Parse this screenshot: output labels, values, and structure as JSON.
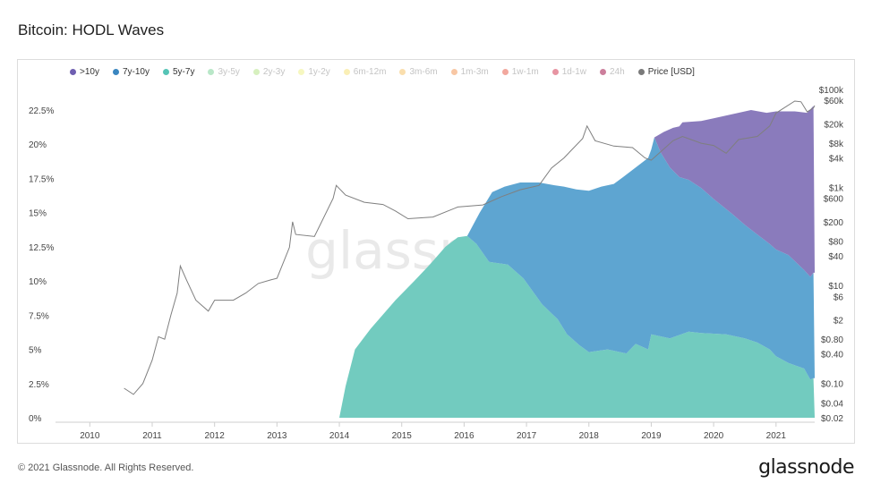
{
  "title": "Bitcoin: HODL Waves",
  "footer": "© 2021 Glassnode. All Rights Reserved.",
  "logo": "glassnode",
  "watermark": "glassnode",
  "legend": [
    {
      "label": ">10y",
      "color": "#6f5fb1",
      "active": true
    },
    {
      "label": "7y-10y",
      "color": "#3a86c0",
      "active": true
    },
    {
      "label": "5y-7y",
      "color": "#56c4b6",
      "active": true
    },
    {
      "label": "3y-5y",
      "color": "#7fd39a",
      "active": false
    },
    {
      "label": "2y-3y",
      "color": "#b7e48a",
      "active": false
    },
    {
      "label": "1y-2y",
      "color": "#eef08c",
      "active": false
    },
    {
      "label": "6m-12m",
      "color": "#f5e27a",
      "active": false
    },
    {
      "label": "3m-6m",
      "color": "#f6c36a",
      "active": false
    },
    {
      "label": "1m-3m",
      "color": "#f3995a",
      "active": false
    },
    {
      "label": "1w-1m",
      "color": "#e8604f",
      "active": false
    },
    {
      "label": "1d-1w",
      "color": "#d33d55",
      "active": false
    },
    {
      "label": "24h",
      "color": "#a3154a",
      "active": false
    },
    {
      "label": "Price [USD]",
      "color": "#7a7a7a",
      "active": true
    }
  ],
  "chart_data": {
    "type": "area",
    "x_ticks": [
      "2010",
      "2011",
      "2012",
      "2013",
      "2014",
      "2015",
      "2016",
      "2017",
      "2018",
      "2019",
      "2020",
      "2021"
    ],
    "y_ticks": [
      "0%",
      "2.5%",
      "5%",
      "7.5%",
      "10%",
      "12.5%",
      "15%",
      "17.5%",
      "20%",
      "22.5%"
    ],
    "y_right_ticks": [
      "$0.02",
      "$0.04",
      "$0.10",
      "$0.40",
      "$0.80",
      "$2",
      "$6",
      "$10",
      "$40",
      "$80",
      "$200",
      "$600",
      "$1k",
      "$4k",
      "$8k",
      "$20k",
      "$60k",
      "$100k"
    ],
    "ylim": [
      0,
      22.5
    ],
    "series": [
      {
        "name": "5y-7y",
        "color": "#72cbbf",
        "points": [
          [
            2014.0,
            0
          ],
          [
            2014.1,
            2.3
          ],
          [
            2014.25,
            5
          ],
          [
            2014.5,
            6.5
          ],
          [
            2014.9,
            8.6
          ],
          [
            2015.2,
            10
          ],
          [
            2015.45,
            11.2
          ],
          [
            2015.7,
            12.5
          ],
          [
            2015.9,
            13.2
          ],
          [
            2016.05,
            13.3
          ],
          [
            2016.2,
            12.7
          ],
          [
            2016.4,
            11.4
          ],
          [
            2016.7,
            11.2
          ],
          [
            2016.95,
            10.2
          ],
          [
            2017.25,
            8.3
          ],
          [
            2017.5,
            7.2
          ],
          [
            2017.65,
            6.1
          ],
          [
            2017.85,
            5.3
          ],
          [
            2018.0,
            4.8
          ],
          [
            2018.3,
            5.0
          ],
          [
            2018.6,
            4.7
          ],
          [
            2018.75,
            5.4
          ],
          [
            2018.95,
            5.0
          ],
          [
            2019.0,
            6.1
          ],
          [
            2019.3,
            5.8
          ],
          [
            2019.6,
            6.3
          ],
          [
            2019.8,
            6.2
          ],
          [
            2020.2,
            6.1
          ],
          [
            2020.5,
            5.8
          ],
          [
            2020.7,
            5.5
          ],
          [
            2020.9,
            5.0
          ],
          [
            2021.0,
            4.5
          ],
          [
            2021.2,
            4.0
          ],
          [
            2021.45,
            3.6
          ],
          [
            2021.55,
            2.8
          ],
          [
            2021.6,
            2.9
          ],
          [
            2021.62,
            0
          ]
        ]
      },
      {
        "name": "7y-10y",
        "color": "#5ea5d1",
        "points": [
          [
            2016.0,
            13.3
          ],
          [
            2016.05,
            13.3
          ],
          [
            2016.25,
            15.0
          ],
          [
            2016.45,
            16.5
          ],
          [
            2016.65,
            16.9
          ],
          [
            2016.9,
            17.2
          ],
          [
            2017.2,
            17.2
          ],
          [
            2017.45,
            17.0
          ],
          [
            2017.6,
            16.9
          ],
          [
            2017.8,
            16.7
          ],
          [
            2018.0,
            16.6
          ],
          [
            2018.2,
            16.9
          ],
          [
            2018.4,
            17.1
          ],
          [
            2018.55,
            17.6
          ],
          [
            2018.75,
            18.3
          ],
          [
            2018.95,
            19.0
          ],
          [
            2019.0,
            19.6
          ],
          [
            2019.05,
            20.5
          ],
          [
            2019.15,
            19.4
          ],
          [
            2019.3,
            18.3
          ],
          [
            2019.45,
            17.6
          ],
          [
            2019.6,
            17.4
          ],
          [
            2019.8,
            16.8
          ],
          [
            2020.0,
            16.0
          ],
          [
            2020.3,
            14.9
          ],
          [
            2020.5,
            14.1
          ],
          [
            2020.7,
            13.4
          ],
          [
            2020.9,
            12.7
          ],
          [
            2021.0,
            12.3
          ],
          [
            2021.2,
            11.9
          ],
          [
            2021.45,
            10.8
          ],
          [
            2021.55,
            10.3
          ],
          [
            2021.6,
            10.6
          ],
          [
            2021.62,
            2.9
          ]
        ]
      },
      {
        "name": ">10y",
        "color": "#8a7bbc",
        "points": [
          [
            2019.05,
            20.5
          ],
          [
            2019.2,
            20.9
          ],
          [
            2019.35,
            21.2
          ],
          [
            2019.45,
            21.3
          ],
          [
            2019.5,
            21.6
          ],
          [
            2019.8,
            21.7
          ],
          [
            2020.0,
            21.9
          ],
          [
            2020.3,
            22.2
          ],
          [
            2020.6,
            22.5
          ],
          [
            2020.85,
            22.3
          ],
          [
            2021.0,
            22.4
          ],
          [
            2021.3,
            22.4
          ],
          [
            2021.5,
            22.3
          ],
          [
            2021.6,
            22.8
          ],
          [
            2021.62,
            10.6
          ]
        ]
      }
    ],
    "price_series": {
      "name": "Price [USD]",
      "color": "#8a8a8a",
      "points": [
        [
          2010.55,
          0.08
        ],
        [
          2010.7,
          0.06
        ],
        [
          2010.85,
          0.1
        ],
        [
          2011.0,
          0.3
        ],
        [
          2011.1,
          0.9
        ],
        [
          2011.2,
          0.8
        ],
        [
          2011.3,
          2.5
        ],
        [
          2011.4,
          7
        ],
        [
          2011.45,
          25
        ],
        [
          2011.55,
          13
        ],
        [
          2011.7,
          5
        ],
        [
          2011.9,
          3
        ],
        [
          2012.0,
          5
        ],
        [
          2012.3,
          5
        ],
        [
          2012.5,
          7
        ],
        [
          2012.7,
          11
        ],
        [
          2012.9,
          13
        ],
        [
          2013.0,
          14
        ],
        [
          2013.2,
          60
        ],
        [
          2013.25,
          200
        ],
        [
          2013.3,
          110
        ],
        [
          2013.6,
          100
        ],
        [
          2013.9,
          600
        ],
        [
          2013.95,
          1100
        ],
        [
          2014.1,
          700
        ],
        [
          2014.4,
          500
        ],
        [
          2014.7,
          450
        ],
        [
          2014.9,
          330
        ],
        [
          2015.1,
          230
        ],
        [
          2015.5,
          250
        ],
        [
          2015.9,
          400
        ],
        [
          2016.3,
          440
        ],
        [
          2016.6,
          650
        ],
        [
          2016.9,
          900
        ],
        [
          2017.2,
          1100
        ],
        [
          2017.4,
          2500
        ],
        [
          2017.6,
          4000
        ],
        [
          2017.9,
          10000
        ],
        [
          2017.97,
          18000
        ],
        [
          2018.1,
          9000
        ],
        [
          2018.4,
          7000
        ],
        [
          2018.7,
          6500
        ],
        [
          2018.9,
          4000
        ],
        [
          2019.0,
          3600
        ],
        [
          2019.35,
          9000
        ],
        [
          2019.5,
          11000
        ],
        [
          2019.8,
          8000
        ],
        [
          2020.0,
          7200
        ],
        [
          2020.2,
          5000
        ],
        [
          2020.4,
          9500
        ],
        [
          2020.7,
          11000
        ],
        [
          2020.9,
          18000
        ],
        [
          2021.0,
          33000
        ],
        [
          2021.3,
          58000
        ],
        [
          2021.4,
          56000
        ],
        [
          2021.5,
          35000
        ],
        [
          2021.6,
          42000
        ],
        [
          2021.62,
          47000
        ]
      ]
    }
  }
}
